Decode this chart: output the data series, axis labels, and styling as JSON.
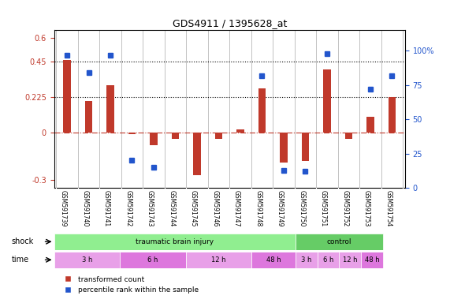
{
  "title": "GDS4911 / 1395628_at",
  "samples": [
    "GSM591739",
    "GSM591740",
    "GSM591741",
    "GSM591742",
    "GSM591743",
    "GSM591744",
    "GSM591745",
    "GSM591746",
    "GSM591747",
    "GSM591748",
    "GSM591749",
    "GSM591750",
    "GSM591751",
    "GSM591752",
    "GSM591753",
    "GSM591754"
  ],
  "red_values": [
    0.46,
    0.2,
    0.3,
    -0.01,
    -0.08,
    -0.04,
    -0.27,
    -0.04,
    0.02,
    0.28,
    -0.19,
    -0.18,
    0.4,
    -0.04,
    0.1,
    0.225
  ],
  "blue_values": [
    97,
    84,
    97,
    20,
    15,
    null,
    null,
    null,
    null,
    82,
    13,
    12,
    98,
    null,
    72,
    82
  ],
  "blue_values_pct": [
    97,
    84,
    97,
    20,
    15,
    null,
    null,
    null,
    null,
    82,
    13,
    12,
    98,
    null,
    72,
    82
  ],
  "ylim_left": [
    -0.35,
    0.65
  ],
  "ylim_right": [
    0,
    115
  ],
  "yticks_left": [
    -0.3,
    0,
    0.225,
    0.45,
    0.6
  ],
  "ytick_labels_left": [
    "-0.3",
    "0",
    "0.225",
    "0.45",
    "0.6"
  ],
  "yticks_right": [
    0,
    25,
    50,
    75,
    100
  ],
  "ytick_labels_right": [
    "0",
    "25",
    "50",
    "75",
    "100%"
  ],
  "hlines": [
    0.225,
    0.45
  ],
  "bar_color": "#c0392b",
  "dot_color": "#2255cc",
  "zero_line_color": "#c0392b",
  "shock_row": [
    {
      "label": "traumatic brain injury",
      "start": 0,
      "end": 11,
      "color": "#90ee90"
    },
    {
      "label": "control",
      "start": 11,
      "end": 15,
      "color": "#66cc66"
    }
  ],
  "time_row": [
    {
      "label": "3 h",
      "start": 0,
      "end": 3,
      "color": "#e8a0e8"
    },
    {
      "label": "6 h",
      "start": 3,
      "end": 6,
      "color": "#dd77dd"
    },
    {
      "label": "12 h",
      "start": 6,
      "end": 9,
      "color": "#e8a0e8"
    },
    {
      "label": "48 h",
      "start": 9,
      "end": 11,
      "color": "#dd77dd"
    },
    {
      "label": "3 h",
      "start": 11,
      "end": 12,
      "color": "#e8a0e8"
    },
    {
      "label": "6 h",
      "start": 12,
      "end": 13,
      "color": "#e8a0e8"
    },
    {
      "label": "12 h",
      "start": 13,
      "end": 14,
      "color": "#e8a0e8"
    },
    {
      "label": "48 h",
      "start": 14,
      "end": 15,
      "color": "#dd77dd"
    }
  ],
  "shock_label": "shock",
  "time_label": "time",
  "legend_red": "transformed count",
  "legend_blue": "percentile rank within the sample",
  "background_color": "#ffffff",
  "grid_color": "#cccccc"
}
